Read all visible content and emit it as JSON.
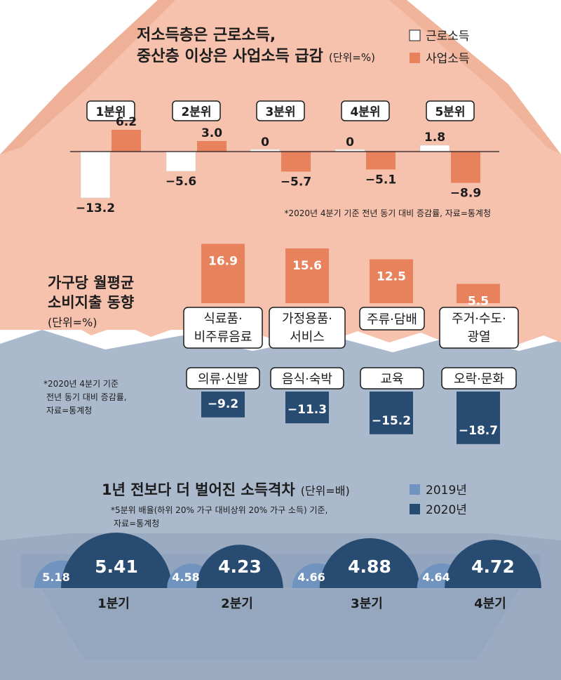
{
  "colors": {
    "salmon_bg": "#f6c2ad",
    "salmon_dark": "#eaa58a",
    "orange_bar": "#e8825c",
    "blue_bg": "#aab9cc",
    "blue_dark": "#8fa2bb",
    "navy_bar": "#284b72",
    "light_blue": "#7193bf",
    "white": "#ffffff",
    "text": "#1c1c1c"
  },
  "section1": {
    "title_line1": "저소득층은 근로소득,",
    "title_line2": "중산층 이상은 사업소득 급감",
    "unit": "(단위=%)",
    "legend": [
      "근로소득",
      "사업소득"
    ],
    "note": "*2020년 4분기 기준 전년 동기 대비 증감률, 자료=통계청"
  },
  "section2": {
    "title_line1": "가구당 월평균",
    "title_line2": "소비지출 동향",
    "unit": "(단위=%)",
    "note_line1": "*2020년 4분기 기준",
    "note_line2": "전년 동기 대비 증감률,",
    "note_line3": "자료=통계청"
  },
  "section3": {
    "title": "1년 전보다 더 벌어진 소득격차",
    "unit": "(단위=배)",
    "legend": [
      "2019년",
      "2020년"
    ],
    "note_line1": "*5분위 배율(하위 20% 가구 대비상위 20% 가구 소득) 기준,",
    "note_line2": "자료=통계청"
  },
  "chart_data": [
    {
      "type": "bar",
      "categories": [
        "1분위",
        "2분위",
        "3분위",
        "4분위",
        "5분위"
      ],
      "series": [
        {
          "name": "근로소득",
          "values": [
            -13.2,
            -5.6,
            0,
            0,
            1.8
          ],
          "labels": [
            "−13.2",
            "−5.6",
            "0",
            "0",
            "1.8"
          ]
        },
        {
          "name": "사업소득",
          "values": [
            6.2,
            3.0,
            -5.7,
            -5.1,
            -8.9
          ],
          "labels": [
            "6.2",
            "3.0",
            "−5.7",
            "−5.1",
            "−8.9"
          ]
        }
      ]
    },
    {
      "type": "bar",
      "categories": [
        "식료품·\n비주류음료",
        "가정용품·\n서비스",
        "주류·담배",
        "주거·수도·\n광열"
      ],
      "values": [
        16.9,
        15.6,
        12.5,
        5.5
      ],
      "labels": [
        "16.9",
        "15.6",
        "12.5",
        "5.5"
      ]
    },
    {
      "type": "bar",
      "categories": [
        "의류·신발",
        "음식·숙박",
        "교육",
        "오락·문화"
      ],
      "values": [
        -9.2,
        -11.3,
        -15.2,
        -18.7
      ],
      "labels": [
        "−9.2",
        "−11.3",
        "−15.2",
        "−18.7"
      ]
    },
    {
      "type": "bar",
      "categories": [
        "1분기",
        "2분기",
        "3분기",
        "4분기"
      ],
      "series": [
        {
          "name": "2019년",
          "values": [
            5.18,
            4.58,
            4.66,
            4.64
          ],
          "labels": [
            "5.18",
            "4.58",
            "4.66",
            "4.64"
          ]
        },
        {
          "name": "2020년",
          "values": [
            5.41,
            4.23,
            4.88,
            4.72
          ],
          "labels": [
            "5.41",
            "4.23",
            "4.88",
            "4.72"
          ]
        }
      ]
    }
  ]
}
